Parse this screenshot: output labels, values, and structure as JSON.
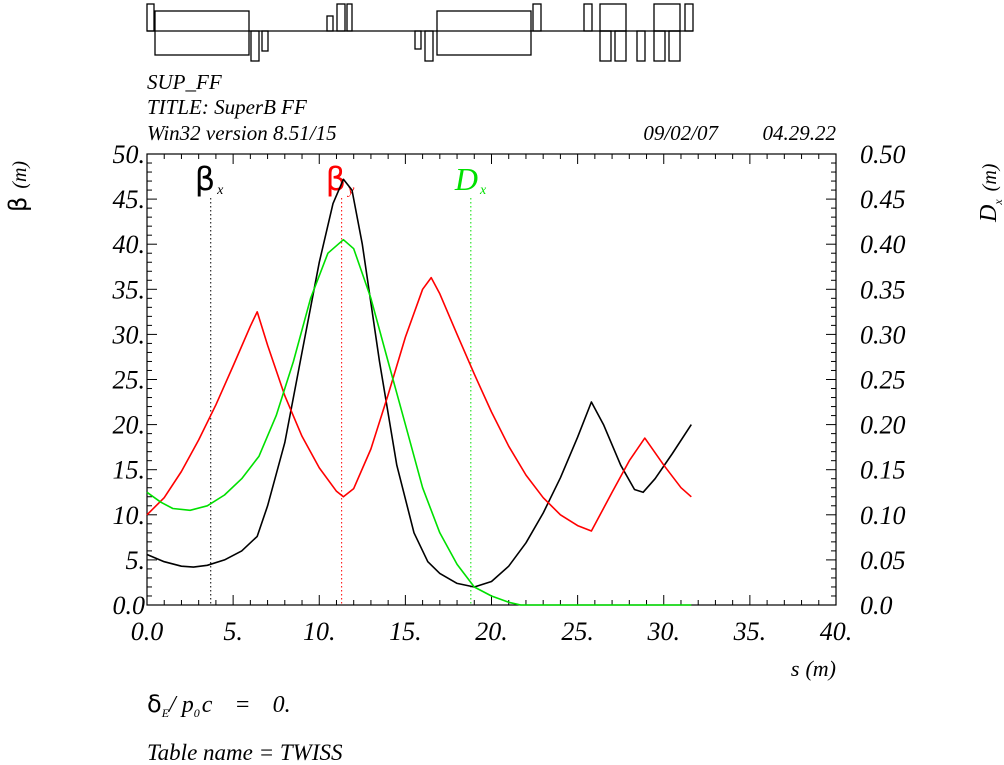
{
  "header": {
    "file": "SUP_FF",
    "title": "TITLE: SuperB FF",
    "version": "Win32 version 8.51/15",
    "date": "09/02/07",
    "time": "04.29.22"
  },
  "footer": {
    "delta_sym": "δ",
    "delta_sub": "E",
    "delta_rest": "/ p",
    "p0_sub": "0",
    "c_sym": "c",
    "eq": "=",
    "value": "0.",
    "table": "Table name = TWISS"
  },
  "colors": {
    "betx": "#000000",
    "bety": "#ff0000",
    "dx": "#00e000"
  },
  "chart_data": {
    "type": "line",
    "title": "TITLE: SuperB FF",
    "xlabel": "s (m)",
    "ylabel": "β (m)",
    "y2label": "Dx (m)",
    "xlim": [
      0,
      40
    ],
    "ylim": [
      0,
      50
    ],
    "y2lim": [
      0,
      0.5
    ],
    "x_ticks": [
      "0.0",
      "5.",
      "10.",
      "15.",
      "20.",
      "25.",
      "30.",
      "35.",
      "40."
    ],
    "y_ticks": [
      "0.0",
      "5.",
      "10.",
      "15.",
      "20.",
      "25.",
      "30.",
      "35.",
      "40.",
      "45.",
      "50."
    ],
    "y2_ticks": [
      "0.0",
      "0.05",
      "0.10",
      "0.15",
      "0.20",
      "0.25",
      "0.30",
      "0.35",
      "0.40",
      "0.45",
      "0.50"
    ],
    "series": [
      {
        "key": "betx",
        "name": "βx",
        "axis": "left",
        "x": [
          0.0,
          1.0,
          2.0,
          2.7,
          3.5,
          4.5,
          5.5,
          6.4,
          7.0,
          8.0,
          9.0,
          10.0,
          10.8,
          11.4,
          11.9,
          12.5,
          13.5,
          14.5,
          15.5,
          16.3,
          17.0,
          18.0,
          19.0,
          20.0,
          21.0,
          22.0,
          23.0,
          24.0,
          25.0,
          25.8,
          26.5,
          27.5,
          28.3,
          28.8,
          29.5,
          30.5,
          31.6
        ],
        "values": [
          5.6,
          4.8,
          4.3,
          4.2,
          4.4,
          5.0,
          6.0,
          7.6,
          11.0,
          18.0,
          28.0,
          38.0,
          44.5,
          47.2,
          46.0,
          40.0,
          27.0,
          15.5,
          8.0,
          4.8,
          3.5,
          2.4,
          2.0,
          2.6,
          4.3,
          6.9,
          10.2,
          14.1,
          18.6,
          22.5,
          20.0,
          15.5,
          12.8,
          12.5,
          14.0,
          16.8,
          20.0
        ]
      },
      {
        "key": "bety",
        "name": "βy",
        "axis": "left",
        "x": [
          0.0,
          1.0,
          2.0,
          3.0,
          4.0,
          5.0,
          6.0,
          6.4,
          7.0,
          8.0,
          9.0,
          10.0,
          11.0,
          11.4,
          12.0,
          13.0,
          14.0,
          15.0,
          16.0,
          16.5,
          17.0,
          18.0,
          19.0,
          20.0,
          21.0,
          22.0,
          23.0,
          24.0,
          25.0,
          25.8,
          27.0,
          28.0,
          28.9,
          30.0,
          31.0,
          31.6
        ],
        "values": [
          10.0,
          11.9,
          14.8,
          18.3,
          22.2,
          26.5,
          30.9,
          32.5,
          28.8,
          23.2,
          18.7,
          15.2,
          12.6,
          12.0,
          12.9,
          17.3,
          23.3,
          29.7,
          35.0,
          36.3,
          34.5,
          30.0,
          25.6,
          21.4,
          17.6,
          14.4,
          11.9,
          10.0,
          8.8,
          8.2,
          12.5,
          16.0,
          18.5,
          15.5,
          13.0,
          12.0
        ]
      },
      {
        "key": "dx",
        "name": "Dx",
        "axis": "right",
        "x": [
          0.0,
          0.8,
          1.5,
          2.5,
          3.5,
          4.5,
          5.5,
          6.5,
          7.5,
          8.5,
          9.5,
          10.5,
          11.4,
          12.0,
          13.0,
          14.0,
          15.0,
          16.0,
          17.0,
          18.0,
          19.0,
          20.0,
          21.0,
          21.7,
          22.5,
          25.0,
          28.0,
          31.6
        ],
        "values": [
          0.125,
          0.114,
          0.107,
          0.105,
          0.11,
          0.122,
          0.14,
          0.165,
          0.21,
          0.27,
          0.34,
          0.39,
          0.405,
          0.395,
          0.34,
          0.27,
          0.2,
          0.13,
          0.08,
          0.045,
          0.02,
          0.01,
          0.003,
          0.0,
          0.0,
          0.0,
          0.0,
          0.0
        ]
      }
    ],
    "markers": [
      {
        "key": "betx",
        "label": "β",
        "sub": "x",
        "s": 3.7
      },
      {
        "key": "bety",
        "label": "β",
        "sub": "y",
        "s": 11.3
      },
      {
        "key": "dx",
        "label": "D",
        "sub": "x",
        "s": 18.8
      }
    ],
    "axis_labels": {
      "left_main": "β",
      "left_unit": "(m)",
      "right_main": "D",
      "right_sub": "x",
      "right_unit": "(m)",
      "x_main": "s",
      "x_unit": "(m)"
    }
  }
}
